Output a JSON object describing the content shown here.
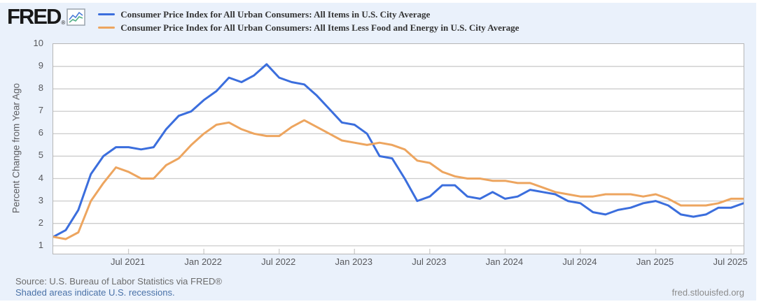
{
  "header": {
    "logo_text": "FRED",
    "logo_reg": "®"
  },
  "chart_data": {
    "type": "line",
    "title": "",
    "xlabel": "",
    "ylabel": "Percent Change from Year Ago",
    "ylim": [
      0.65,
      10
    ],
    "yticks": [
      1,
      2,
      3,
      4,
      5,
      6,
      7,
      8,
      9,
      10
    ],
    "grid": true,
    "legend_position": "top-left",
    "x_start": "2021-01",
    "x_end": "2025-08",
    "frequency": "monthly",
    "xticks": [
      {
        "label": "Jul 2021",
        "month_index": 6
      },
      {
        "label": "Jan 2022",
        "month_index": 12
      },
      {
        "label": "Jul 2022",
        "month_index": 18
      },
      {
        "label": "Jan 2023",
        "month_index": 24
      },
      {
        "label": "Jul 2023",
        "month_index": 30
      },
      {
        "label": "Jan 2024",
        "month_index": 36
      },
      {
        "label": "Jul 2024",
        "month_index": 42
      },
      {
        "label": "Jan 2025",
        "month_index": 48
      },
      {
        "label": "Jul 2025",
        "month_index": 54
      }
    ],
    "series": [
      {
        "name": "Consumer Price Index for All Urban Consumers: All Items in U.S. City Average",
        "color": "#3b6edd",
        "values": [
          1.4,
          1.7,
          2.6,
          4.2,
          5.0,
          5.4,
          5.4,
          5.3,
          5.4,
          6.2,
          6.8,
          7.0,
          7.5,
          7.9,
          8.5,
          8.3,
          8.6,
          9.1,
          8.5,
          8.3,
          8.2,
          7.7,
          7.1,
          6.5,
          6.4,
          6.0,
          5.0,
          4.9,
          4.0,
          3.0,
          3.2,
          3.7,
          3.7,
          3.2,
          3.1,
          3.4,
          3.1,
          3.2,
          3.5,
          3.4,
          3.3,
          3.0,
          2.9,
          2.5,
          2.4,
          2.6,
          2.7,
          2.9,
          3.0,
          2.8,
          2.4,
          2.3,
          2.4,
          2.7,
          2.7,
          2.9
        ]
      },
      {
        "name": "Consumer Price Index for All Urban Consumers: All Items Less Food and Energy in U.S. City Average",
        "color": "#eda55f",
        "values": [
          1.4,
          1.3,
          1.6,
          3.0,
          3.8,
          4.5,
          4.3,
          4.0,
          4.0,
          4.6,
          4.9,
          5.5,
          6.0,
          6.4,
          6.5,
          6.2,
          6.0,
          5.9,
          5.9,
          6.3,
          6.6,
          6.3,
          6.0,
          5.7,
          5.6,
          5.5,
          5.6,
          5.5,
          5.3,
          4.8,
          4.7,
          4.3,
          4.1,
          4.0,
          4.0,
          3.9,
          3.9,
          3.8,
          3.8,
          3.6,
          3.4,
          3.3,
          3.2,
          3.2,
          3.3,
          3.3,
          3.3,
          3.2,
          3.3,
          3.1,
          2.8,
          2.8,
          2.8,
          2.9,
          3.1,
          3.1
        ]
      }
    ],
    "colors": {
      "grid": "#cccccc",
      "tick": "#cccccc",
      "border": "#b6b6b6",
      "plot_bg": "#ffffff",
      "page_bg": "#eaf1fb"
    }
  },
  "footer": {
    "source": "Source: U.S. Bureau of Labor Statistics via FRED®",
    "recession_note": "Shaded areas indicate U.S. recessions.",
    "site": "fred.stlouisfed.org"
  }
}
